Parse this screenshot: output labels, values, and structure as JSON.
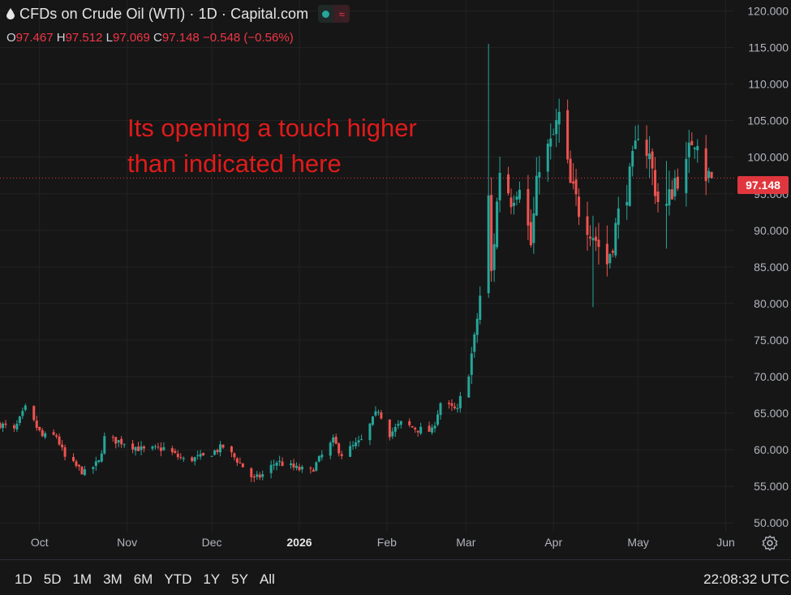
{
  "header": {
    "title": "CFDs on Crude Oil (WTI) · 1D · Capital.com",
    "ohlc": {
      "o_label": "O",
      "o": "97.467",
      "h_label": "H",
      "h": "97.512",
      "l_label": "L",
      "l": "97.069",
      "c_label": "C",
      "c": "97.148",
      "change": "−0.548 (−0.56%)"
    }
  },
  "annotation": "Its opening a touch higher\nthan indicated here",
  "last_price_tag": "97.148",
  "time_ranges": [
    "1D",
    "5D",
    "1M",
    "3M",
    "6M",
    "YTD",
    "1Y",
    "5Y",
    "All"
  ],
  "clock": "22:08:32 UTC",
  "colors": {
    "up": "#26a69a",
    "down": "#ef5350",
    "background": "#161616",
    "grid": "#232323",
    "tag": "#e0373f"
  },
  "icons": {
    "symbol": "oil-drop-icon",
    "status": "market-open-dot-icon",
    "wave": "wave-icon",
    "settings": "gear-icon"
  },
  "chart_data": {
    "type": "candlestick",
    "xlim": [
      "2025-09-17",
      "2026-06-04"
    ],
    "ylim": [
      48.8,
      121.5
    ],
    "y_ticks": [
      "120.000",
      "115.000",
      "110.000",
      "105.000",
      "100.000",
      "95.000",
      "90.000",
      "85.000",
      "80.000",
      "75.000",
      "70.000",
      "65.000",
      "60.000",
      "55.000",
      "50.000"
    ],
    "x_ticks": [
      {
        "label": "Oct",
        "date": "2025-10-01"
      },
      {
        "label": "Nov",
        "date": "2025-11-01"
      },
      {
        "label": "Dec",
        "date": "2025-12-01"
      },
      {
        "label": "2026",
        "date": "2026-01-01",
        "bold": true
      },
      {
        "label": "Feb",
        "date": "2026-02-01"
      },
      {
        "label": "Mar",
        "date": "2026-03-01"
      },
      {
        "label": "Apr",
        "date": "2026-04-01"
      },
      {
        "label": "May",
        "date": "2026-05-01"
      },
      {
        "label": "Jun",
        "date": "2026-06-01"
      }
    ],
    "last_price": 97.148,
    "segments": [
      {
        "date": "2025-09-17",
        "price": 63.5
      },
      {
        "date": "2025-09-22",
        "price": 62.6
      },
      {
        "date": "2025-09-26",
        "price": 65.6
      },
      {
        "date": "2025-10-02",
        "price": 61.8
      },
      {
        "date": "2025-10-07",
        "price": 61.9
      },
      {
        "date": "2025-10-10",
        "price": 58.9
      },
      {
        "date": "2025-10-17",
        "price": 56.8
      },
      {
        "date": "2025-10-22",
        "price": 58.3
      },
      {
        "date": "2025-10-24",
        "price": 61.6
      },
      {
        "date": "2025-10-31",
        "price": 61.0
      },
      {
        "date": "2025-11-07",
        "price": 59.9
      },
      {
        "date": "2025-11-14",
        "price": 60.2
      },
      {
        "date": "2025-11-21",
        "price": 58.6
      },
      {
        "date": "2025-11-28",
        "price": 59.0
      },
      {
        "date": "2025-12-05",
        "price": 60.4
      },
      {
        "date": "2025-12-10",
        "price": 58.6
      },
      {
        "date": "2025-12-16",
        "price": 55.9
      },
      {
        "date": "2025-12-19",
        "price": 56.6
      },
      {
        "date": "2025-12-24",
        "price": 58.4
      },
      {
        "date": "2025-12-31",
        "price": 57.4
      },
      {
        "date": "2026-01-05",
        "price": 57.0
      },
      {
        "date": "2026-01-09",
        "price": 59.2
      },
      {
        "date": "2026-01-13",
        "price": 61.2
      },
      {
        "date": "2026-01-16",
        "price": 59.4
      },
      {
        "date": "2026-01-23",
        "price": 61.2
      },
      {
        "date": "2026-01-29",
        "price": 65.5
      },
      {
        "date": "2026-02-02",
        "price": 62.2
      },
      {
        "date": "2026-02-06",
        "price": 63.6
      },
      {
        "date": "2026-02-12",
        "price": 62.8
      },
      {
        "date": "2026-02-17",
        "price": 62.5
      },
      {
        "date": "2026-02-20",
        "price": 66.4
      },
      {
        "date": "2026-02-26",
        "price": 65.3
      },
      {
        "date": "2026-02-27",
        "price": 67.0
      },
      {
        "date": "2026-03-02",
        "price": 71.0
      },
      {
        "date": "2026-03-04",
        "price": 75.0
      },
      {
        "date": "2026-03-06",
        "price": 81.0
      },
      {
        "date": "2026-03-09",
        "price": 94.0
      },
      {
        "date": "2026-03-10",
        "price": 84.0
      },
      {
        "date": "2026-03-13",
        "price": 98.5
      },
      {
        "date": "2026-03-17",
        "price": 94.5
      },
      {
        "date": "2026-03-20",
        "price": 97.0
      },
      {
        "date": "2026-03-24",
        "price": 88.0
      },
      {
        "date": "2026-03-27",
        "price": 99.5
      },
      {
        "date": "2026-03-31",
        "price": 101.5
      },
      {
        "date": "2026-04-03",
        "price": 105.5
      },
      {
        "date": "2026-04-07",
        "price": 96.0
      },
      {
        "date": "2026-04-10",
        "price": 93.0
      },
      {
        "date": "2026-04-14",
        "price": 90.5
      },
      {
        "date": "2026-04-17",
        "price": 88.0
      },
      {
        "date": "2026-04-20",
        "price": 85.5
      },
      {
        "date": "2026-04-24",
        "price": 92.0
      },
      {
        "date": "2026-04-28",
        "price": 97.0
      },
      {
        "date": "2026-04-30",
        "price": 101.0
      },
      {
        "date": "2026-05-01",
        "price": 104.0
      },
      {
        "date": "2026-05-05",
        "price": 100.0
      },
      {
        "date": "2026-05-08",
        "price": 94.0
      },
      {
        "date": "2026-05-11",
        "price": 93.0
      },
      {
        "date": "2026-05-14",
        "price": 97.0
      },
      {
        "date": "2026-05-18",
        "price": 98.5
      },
      {
        "date": "2026-05-20",
        "price": 102.5
      },
      {
        "date": "2026-05-22",
        "price": 103.0
      },
      {
        "date": "2026-05-24",
        "price": 98.0
      },
      {
        "date": "2026-05-27",
        "price": 97.148
      }
    ],
    "spikes": [
      {
        "date": "2026-03-09",
        "high": 115.5,
        "low": 86.0
      },
      {
        "date": "2026-04-15",
        "high": 92.0,
        "low": 79.5
      },
      {
        "date": "2026-05-03",
        "high": 108.5,
        "low": 99.0
      },
      {
        "date": "2026-05-11",
        "high": 99.5,
        "low": 87.5
      }
    ]
  }
}
